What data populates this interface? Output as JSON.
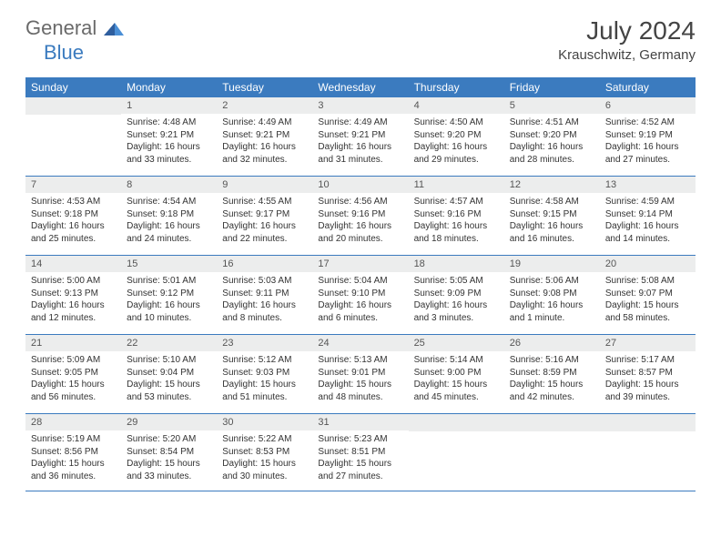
{
  "logo": {
    "part1": "General",
    "part2": "Blue"
  },
  "title": {
    "month": "July 2024",
    "location": "Krauschwitz, Germany"
  },
  "colors": {
    "header_bg": "#3b7bbf",
    "header_text": "#ffffff",
    "numbar_bg": "#eceded",
    "text": "#333333",
    "rule": "#3b7bbf"
  },
  "daynames": [
    "Sunday",
    "Monday",
    "Tuesday",
    "Wednesday",
    "Thursday",
    "Friday",
    "Saturday"
  ],
  "weeks": [
    [
      {
        "n": "",
        "sr": "",
        "ss": "",
        "dl": ""
      },
      {
        "n": "1",
        "sr": "Sunrise: 4:48 AM",
        "ss": "Sunset: 9:21 PM",
        "dl": "Daylight: 16 hours and 33 minutes."
      },
      {
        "n": "2",
        "sr": "Sunrise: 4:49 AM",
        "ss": "Sunset: 9:21 PM",
        "dl": "Daylight: 16 hours and 32 minutes."
      },
      {
        "n": "3",
        "sr": "Sunrise: 4:49 AM",
        "ss": "Sunset: 9:21 PM",
        "dl": "Daylight: 16 hours and 31 minutes."
      },
      {
        "n": "4",
        "sr": "Sunrise: 4:50 AM",
        "ss": "Sunset: 9:20 PM",
        "dl": "Daylight: 16 hours and 29 minutes."
      },
      {
        "n": "5",
        "sr": "Sunrise: 4:51 AM",
        "ss": "Sunset: 9:20 PM",
        "dl": "Daylight: 16 hours and 28 minutes."
      },
      {
        "n": "6",
        "sr": "Sunrise: 4:52 AM",
        "ss": "Sunset: 9:19 PM",
        "dl": "Daylight: 16 hours and 27 minutes."
      }
    ],
    [
      {
        "n": "7",
        "sr": "Sunrise: 4:53 AM",
        "ss": "Sunset: 9:18 PM",
        "dl": "Daylight: 16 hours and 25 minutes."
      },
      {
        "n": "8",
        "sr": "Sunrise: 4:54 AM",
        "ss": "Sunset: 9:18 PM",
        "dl": "Daylight: 16 hours and 24 minutes."
      },
      {
        "n": "9",
        "sr": "Sunrise: 4:55 AM",
        "ss": "Sunset: 9:17 PM",
        "dl": "Daylight: 16 hours and 22 minutes."
      },
      {
        "n": "10",
        "sr": "Sunrise: 4:56 AM",
        "ss": "Sunset: 9:16 PM",
        "dl": "Daylight: 16 hours and 20 minutes."
      },
      {
        "n": "11",
        "sr": "Sunrise: 4:57 AM",
        "ss": "Sunset: 9:16 PM",
        "dl": "Daylight: 16 hours and 18 minutes."
      },
      {
        "n": "12",
        "sr": "Sunrise: 4:58 AM",
        "ss": "Sunset: 9:15 PM",
        "dl": "Daylight: 16 hours and 16 minutes."
      },
      {
        "n": "13",
        "sr": "Sunrise: 4:59 AM",
        "ss": "Sunset: 9:14 PM",
        "dl": "Daylight: 16 hours and 14 minutes."
      }
    ],
    [
      {
        "n": "14",
        "sr": "Sunrise: 5:00 AM",
        "ss": "Sunset: 9:13 PM",
        "dl": "Daylight: 16 hours and 12 minutes."
      },
      {
        "n": "15",
        "sr": "Sunrise: 5:01 AM",
        "ss": "Sunset: 9:12 PM",
        "dl": "Daylight: 16 hours and 10 minutes."
      },
      {
        "n": "16",
        "sr": "Sunrise: 5:03 AM",
        "ss": "Sunset: 9:11 PM",
        "dl": "Daylight: 16 hours and 8 minutes."
      },
      {
        "n": "17",
        "sr": "Sunrise: 5:04 AM",
        "ss": "Sunset: 9:10 PM",
        "dl": "Daylight: 16 hours and 6 minutes."
      },
      {
        "n": "18",
        "sr": "Sunrise: 5:05 AM",
        "ss": "Sunset: 9:09 PM",
        "dl": "Daylight: 16 hours and 3 minutes."
      },
      {
        "n": "19",
        "sr": "Sunrise: 5:06 AM",
        "ss": "Sunset: 9:08 PM",
        "dl": "Daylight: 16 hours and 1 minute."
      },
      {
        "n": "20",
        "sr": "Sunrise: 5:08 AM",
        "ss": "Sunset: 9:07 PM",
        "dl": "Daylight: 15 hours and 58 minutes."
      }
    ],
    [
      {
        "n": "21",
        "sr": "Sunrise: 5:09 AM",
        "ss": "Sunset: 9:05 PM",
        "dl": "Daylight: 15 hours and 56 minutes."
      },
      {
        "n": "22",
        "sr": "Sunrise: 5:10 AM",
        "ss": "Sunset: 9:04 PM",
        "dl": "Daylight: 15 hours and 53 minutes."
      },
      {
        "n": "23",
        "sr": "Sunrise: 5:12 AM",
        "ss": "Sunset: 9:03 PM",
        "dl": "Daylight: 15 hours and 51 minutes."
      },
      {
        "n": "24",
        "sr": "Sunrise: 5:13 AM",
        "ss": "Sunset: 9:01 PM",
        "dl": "Daylight: 15 hours and 48 minutes."
      },
      {
        "n": "25",
        "sr": "Sunrise: 5:14 AM",
        "ss": "Sunset: 9:00 PM",
        "dl": "Daylight: 15 hours and 45 minutes."
      },
      {
        "n": "26",
        "sr": "Sunrise: 5:16 AM",
        "ss": "Sunset: 8:59 PM",
        "dl": "Daylight: 15 hours and 42 minutes."
      },
      {
        "n": "27",
        "sr": "Sunrise: 5:17 AM",
        "ss": "Sunset: 8:57 PM",
        "dl": "Daylight: 15 hours and 39 minutes."
      }
    ],
    [
      {
        "n": "28",
        "sr": "Sunrise: 5:19 AM",
        "ss": "Sunset: 8:56 PM",
        "dl": "Daylight: 15 hours and 36 minutes."
      },
      {
        "n": "29",
        "sr": "Sunrise: 5:20 AM",
        "ss": "Sunset: 8:54 PM",
        "dl": "Daylight: 15 hours and 33 minutes."
      },
      {
        "n": "30",
        "sr": "Sunrise: 5:22 AM",
        "ss": "Sunset: 8:53 PM",
        "dl": "Daylight: 15 hours and 30 minutes."
      },
      {
        "n": "31",
        "sr": "Sunrise: 5:23 AM",
        "ss": "Sunset: 8:51 PM",
        "dl": "Daylight: 15 hours and 27 minutes."
      },
      {
        "n": "",
        "sr": "",
        "ss": "",
        "dl": ""
      },
      {
        "n": "",
        "sr": "",
        "ss": "",
        "dl": ""
      },
      {
        "n": "",
        "sr": "",
        "ss": "",
        "dl": ""
      }
    ]
  ]
}
